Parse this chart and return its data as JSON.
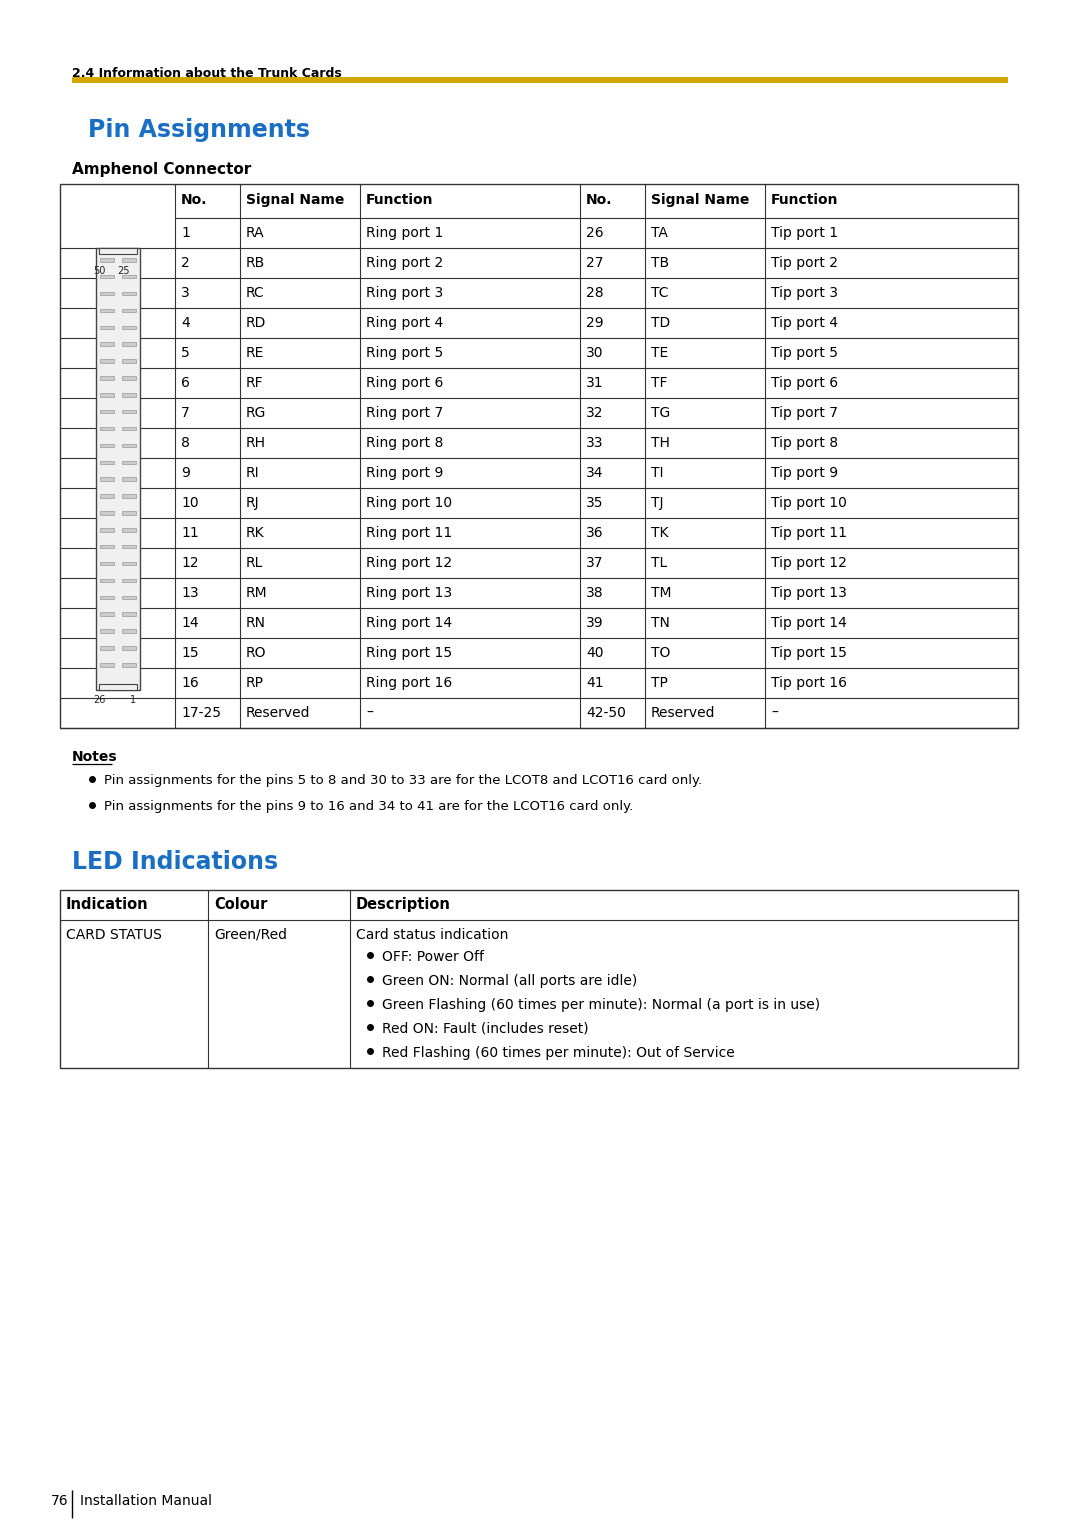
{
  "page_header": "2.4 Information about the Trunk Cards",
  "section_title": "Pin Assignments",
  "subsection_title": "Amphenol Connector",
  "section_title_color": "#1a6fc4",
  "header_line_color": "#d4a800",
  "background_color": "#ffffff",
  "table_header": [
    "No.",
    "Signal Name",
    "Function",
    "No.",
    "Signal Name",
    "Function"
  ],
  "table_rows": [
    [
      "1",
      "RA",
      "Ring port 1",
      "26",
      "TA",
      "Tip port 1"
    ],
    [
      "2",
      "RB",
      "Ring port 2",
      "27",
      "TB",
      "Tip port 2"
    ],
    [
      "3",
      "RC",
      "Ring port 3",
      "28",
      "TC",
      "Tip port 3"
    ],
    [
      "4",
      "RD",
      "Ring port 4",
      "29",
      "TD",
      "Tip port 4"
    ],
    [
      "5",
      "RE",
      "Ring port 5",
      "30",
      "TE",
      "Tip port 5"
    ],
    [
      "6",
      "RF",
      "Ring port 6",
      "31",
      "TF",
      "Tip port 6"
    ],
    [
      "7",
      "RG",
      "Ring port 7",
      "32",
      "TG",
      "Tip port 7"
    ],
    [
      "8",
      "RH",
      "Ring port 8",
      "33",
      "TH",
      "Tip port 8"
    ],
    [
      "9",
      "RI",
      "Ring port 9",
      "34",
      "TI",
      "Tip port 9"
    ],
    [
      "10",
      "RJ",
      "Ring port 10",
      "35",
      "TJ",
      "Tip port 10"
    ],
    [
      "11",
      "RK",
      "Ring port 11",
      "36",
      "TK",
      "Tip port 11"
    ],
    [
      "12",
      "RL",
      "Ring port 12",
      "37",
      "TL",
      "Tip port 12"
    ],
    [
      "13",
      "RM",
      "Ring port 13",
      "38",
      "TM",
      "Tip port 13"
    ],
    [
      "14",
      "RN",
      "Ring port 14",
      "39",
      "TN",
      "Tip port 14"
    ],
    [
      "15",
      "RO",
      "Ring port 15",
      "40",
      "TO",
      "Tip port 15"
    ],
    [
      "16",
      "RP",
      "Ring port 16",
      "41",
      "TP",
      "Tip port 16"
    ],
    [
      "17-25",
      "Reserved",
      "–",
      "42-50",
      "Reserved",
      "–"
    ]
  ],
  "notes_title": "Notes",
  "notes": [
    "Pin assignments for the pins 5 to 8 and 30 to 33 are for the LCOT8 and LCOT16 card only.",
    "Pin assignments for the pins 9 to 16 and 34 to 41 are for the LCOT16 card only."
  ],
  "led_title": "LED Indications",
  "led_title_color": "#1a6fc4",
  "led_table_header": [
    "Indication",
    "Colour",
    "Description"
  ],
  "led_rows": [
    [
      "CARD STATUS",
      "Green/Red",
      "Card status indication"
    ]
  ],
  "led_bullets": [
    "OFF: Power Off",
    "Green ON: Normal (all ports are idle)",
    "Green Flashing (60 times per minute): Normal (a port is in use)",
    "Red ON: Fault (includes reset)",
    "Red Flashing (60 times per minute): Out of Service"
  ],
  "footer_page": "76",
  "footer_text": "Installation Manual"
}
